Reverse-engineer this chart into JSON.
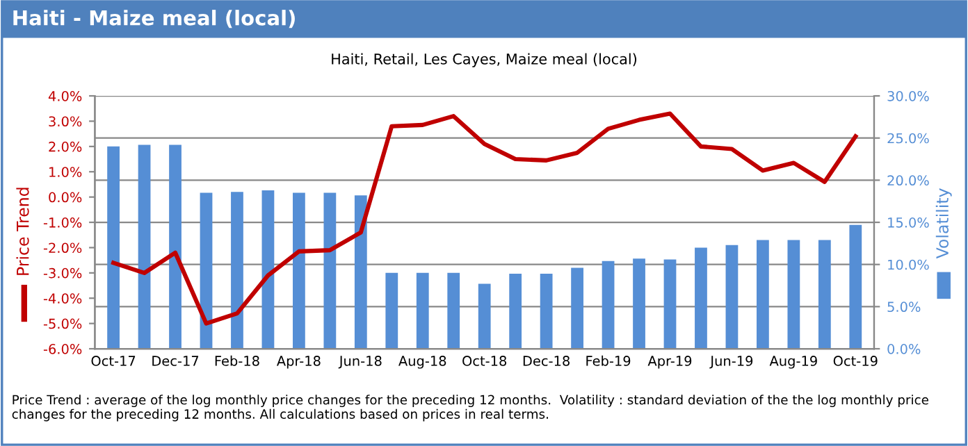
{
  "chart_data": {
    "type": "bar",
    "title": "Haiti - Maize meal (local)",
    "subtitle": "Haiti, Retail, Les Cayes, Maize meal (local)",
    "categories": [
      "Oct-17",
      null,
      "Dec-17",
      null,
      "Feb-18",
      null,
      "Apr-18",
      null,
      "Jun-18",
      null,
      "Aug-18",
      null,
      "Oct-18",
      null,
      "Dec-18",
      null,
      "Feb-19",
      null,
      "Apr-19",
      null,
      "Jun-19",
      null,
      "Aug-19",
      null,
      "Oct-19"
    ],
    "series": [
      {
        "name": "Volatility",
        "axis": "y2",
        "color": "#558ed5",
        "values": [
          24.0,
          24.2,
          24.2,
          18.5,
          18.6,
          18.8,
          18.5,
          18.5,
          18.2,
          9.0,
          9.0,
          9.0,
          7.7,
          8.9,
          8.9,
          9.6,
          10.4,
          10.7,
          10.6,
          12.0,
          12.3,
          12.9,
          12.9,
          12.9,
          14.7
        ]
      },
      {
        "name": "Price Trend",
        "type": "line",
        "color": "#c00000",
        "values": [
          -2.6,
          -3.0,
          -2.2,
          -5.0,
          -4.6,
          -3.1,
          -2.15,
          -2.1,
          -1.4,
          2.8,
          2.85,
          3.2,
          2.1,
          1.5,
          1.45,
          1.75,
          2.7,
          3.05,
          3.3,
          2.0,
          1.9,
          1.05,
          1.35,
          0.6,
          2.4
        ]
      }
    ],
    "ylim": [
      -6,
      4
    ],
    "yticks": [
      {
        "value": -6,
        "label": "-6.0%"
      },
      {
        "value": -5,
        "label": "-5.0%"
      },
      {
        "value": -4,
        "label": "-4.0%"
      },
      {
        "value": -3,
        "label": "-3.0%"
      },
      {
        "value": -2,
        "label": "-2.0%"
      },
      {
        "value": -1,
        "label": "-1.0%"
      },
      {
        "value": 0,
        "label": "0.0%"
      },
      {
        "value": 1,
        "label": "1.0%"
      },
      {
        "value": 2,
        "label": "2.0%"
      },
      {
        "value": 3,
        "label": "3.0%"
      },
      {
        "value": 4,
        "label": "4.0%"
      }
    ],
    "y2lim": [
      0,
      30
    ],
    "y2ticks": [
      {
        "value": 0,
        "label": "0.0%"
      },
      {
        "value": 5,
        "label": "5.0%"
      },
      {
        "value": 10,
        "label": "10.0%"
      },
      {
        "value": 15,
        "label": "15.0%"
      },
      {
        "value": 20,
        "label": "20.0%"
      },
      {
        "value": 25,
        "label": "25.0%"
      },
      {
        "value": 30,
        "label": "30.0%"
      }
    ],
    "grid": "y",
    "line_style": "solid",
    "marker": "none",
    "annotations": [
      "Price Trend : average of the log monthly price changes for the preceding 12 months.  Volatility : standard deviation of the the log monthly price changes for the preceding 12 months. All calculations based on prices in real terms."
    ]
  }
}
